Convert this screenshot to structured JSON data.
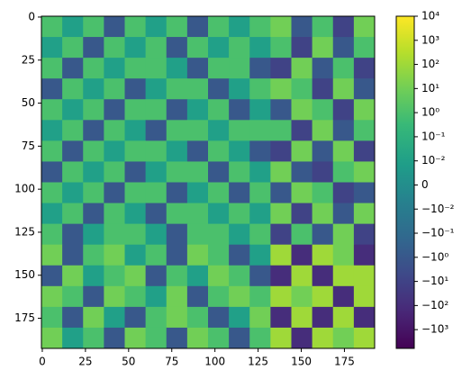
{
  "chart_data": {
    "type": "heatmap",
    "xlim": [
      -0.5,
      192.5
    ],
    "ylim": [
      192.5,
      -0.5
    ],
    "xticks": [
      0,
      25,
      50,
      75,
      100,
      125,
      150,
      175
    ],
    "yticks": [
      0,
      25,
      50,
      75,
      100,
      125,
      150,
      175
    ],
    "colormap": "viridis",
    "norm": "symlog",
    "linthresh": 0.01,
    "linscale": 1,
    "clim": [
      -6000,
      10000
    ],
    "cticks": [
      {
        "value": 10000,
        "label": "10⁴"
      },
      {
        "value": 1000,
        "label": "10³"
      },
      {
        "value": 100,
        "label": "10²"
      },
      {
        "value": 10,
        "label": "10¹"
      },
      {
        "value": 1,
        "label": "10⁰"
      },
      {
        "value": 0.1,
        "label": "10⁻¹"
      },
      {
        "value": 0.01,
        "label": "10⁻²"
      },
      0,
      {
        "value": -0.01,
        "label": "−10⁻²"
      },
      {
        "value": -0.1,
        "label": "−10⁻¹"
      },
      {
        "value": -1,
        "label": "−10⁰"
      },
      {
        "value": -10,
        "label": "−10¹"
      },
      {
        "value": -100,
        "label": "−10²"
      },
      {
        "value": -1000,
        "label": "−10³"
      }
    ],
    "z": [
      [
        1,
        0.01,
        1,
        -1,
        1,
        0.01,
        1,
        -1,
        1,
        0.01,
        1,
        10,
        -1,
        1,
        -10,
        10
      ],
      [
        0.01,
        1,
        -1,
        1,
        0.01,
        1,
        -1,
        1,
        0.01,
        1,
        0.01,
        1,
        -10,
        10,
        -1,
        1
      ],
      [
        1,
        -1,
        1,
        0.01,
        1,
        1,
        0.01,
        -1,
        1,
        1,
        -1,
        -10,
        10,
        -1,
        1,
        -10
      ],
      [
        -1,
        1,
        0.01,
        1,
        -1,
        0.01,
        1,
        1,
        -1,
        0.01,
        1,
        10,
        1,
        -10,
        10,
        -1
      ],
      [
        1,
        0.01,
        1,
        -1,
        1,
        1,
        -1,
        0.01,
        1,
        -1,
        0.01,
        -1,
        10,
        1,
        -10,
        10
      ],
      [
        0.01,
        1,
        -1,
        1,
        0.01,
        -1,
        1,
        1,
        0.01,
        1,
        1,
        1,
        -10,
        10,
        -1,
        1
      ],
      [
        1,
        -1,
        1,
        0.01,
        1,
        1,
        0.01,
        -1,
        1,
        0.01,
        -1,
        -10,
        10,
        -1,
        10,
        -10
      ],
      [
        -1,
        1,
        0.01,
        1,
        -1,
        0.01,
        1,
        1,
        -1,
        1,
        0.01,
        10,
        -1,
        -10,
        1,
        10
      ],
      [
        1,
        0.01,
        1,
        -1,
        1,
        1,
        -1,
        0.01,
        1,
        -1,
        1,
        -1,
        10,
        1,
        -10,
        -1
      ],
      [
        0.01,
        1,
        -1,
        1,
        0.01,
        -1,
        1,
        1,
        0.01,
        1,
        0.01,
        10,
        -10,
        10,
        -1,
        10
      ],
      [
        1,
        -1,
        0.01,
        1,
        1,
        0.01,
        -1,
        1,
        1,
        0.01,
        1,
        -10,
        1,
        -1,
        10,
        -10
      ],
      [
        10,
        -1,
        1,
        10,
        0.01,
        1,
        -1,
        10,
        1,
        -1,
        0.01,
        100,
        -100,
        100,
        10,
        -100
      ],
      [
        -1,
        10,
        0.01,
        1,
        10,
        -1,
        1,
        0.01,
        10,
        1,
        -1,
        -100,
        100,
        -100,
        100,
        100
      ],
      [
        10,
        1,
        -1,
        10,
        1,
        0.01,
        10,
        -1,
        1,
        10,
        1,
        100,
        10,
        100,
        -100,
        100
      ],
      [
        1,
        -1,
        10,
        0.01,
        -1,
        1,
        10,
        1,
        -1,
        0.01,
        10,
        -100,
        100,
        -100,
        100,
        -100
      ],
      [
        10,
        0.01,
        1,
        -1,
        10,
        1,
        -1,
        10,
        1,
        -1,
        1,
        100,
        -100,
        100,
        10,
        100
      ]
    ]
  }
}
